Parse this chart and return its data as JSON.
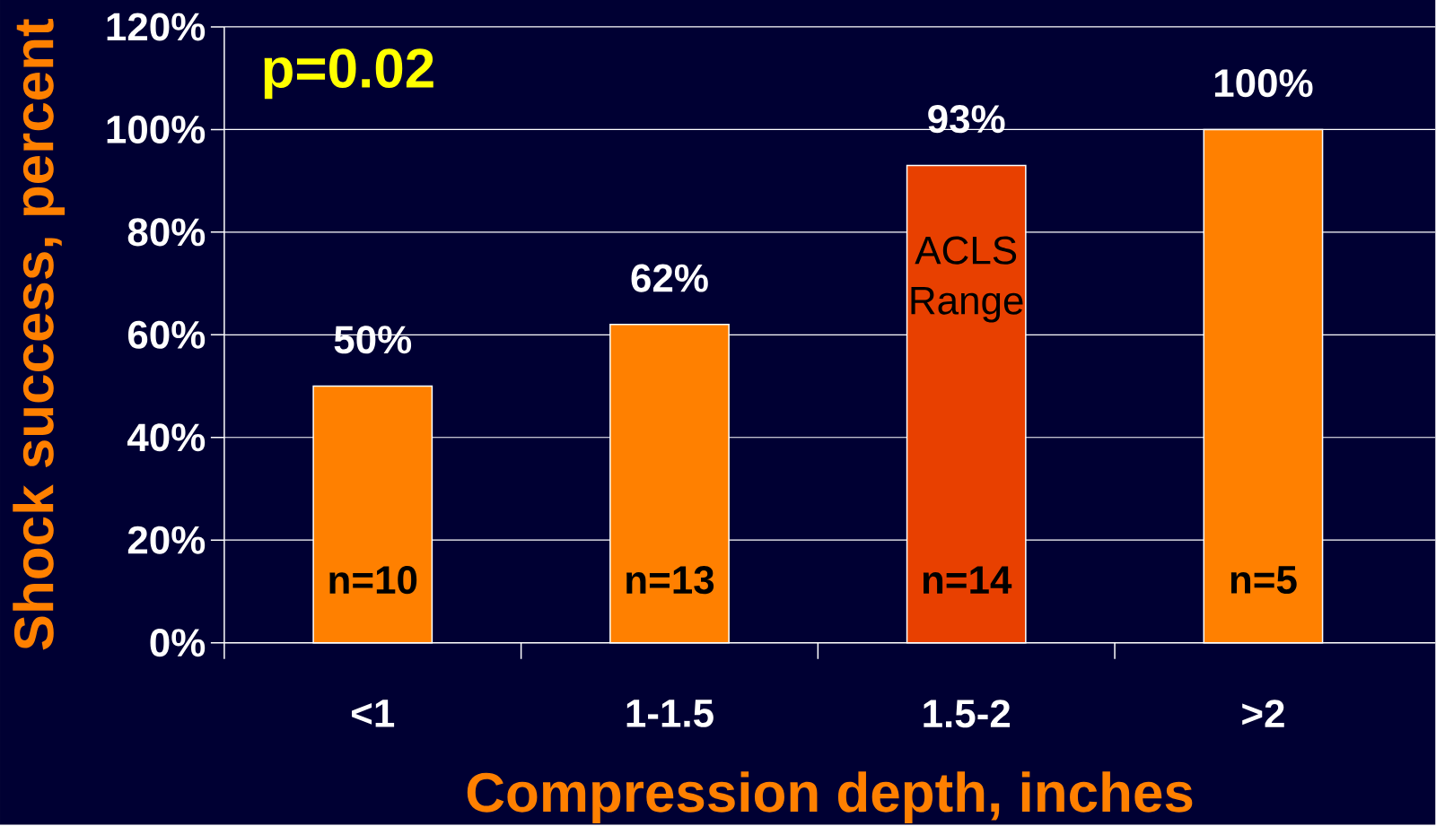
{
  "chart_data": {
    "type": "bar",
    "xlabel": "Compression depth, inches",
    "ylabel": "Shock success, percent",
    "categories": [
      "<1",
      "1-1.5",
      "1.5-2",
      ">2"
    ],
    "values": [
      50,
      62,
      93,
      100
    ],
    "colors": [
      "#ff8000",
      "#ff8000",
      "#e84000",
      "#ff8000"
    ],
    "value_labels": [
      "50%",
      "62%",
      "93%",
      "100%"
    ],
    "ylim": [
      0,
      120
    ],
    "yticks": [
      {
        "value": 0,
        "label": "0%"
      },
      {
        "value": 20,
        "label": "20%"
      },
      {
        "value": 40,
        "label": "40%"
      },
      {
        "value": 60,
        "label": "60%"
      },
      {
        "value": 80,
        "label": "80%"
      },
      {
        "value": 100,
        "label": "100%"
      },
      {
        "value": 120,
        "label": "120%"
      }
    ],
    "grid": "y",
    "annotations": [
      "p=0.02",
      "n=10",
      "n=13",
      "n=14",
      "n=5",
      "ACLS Range"
    ]
  }
}
